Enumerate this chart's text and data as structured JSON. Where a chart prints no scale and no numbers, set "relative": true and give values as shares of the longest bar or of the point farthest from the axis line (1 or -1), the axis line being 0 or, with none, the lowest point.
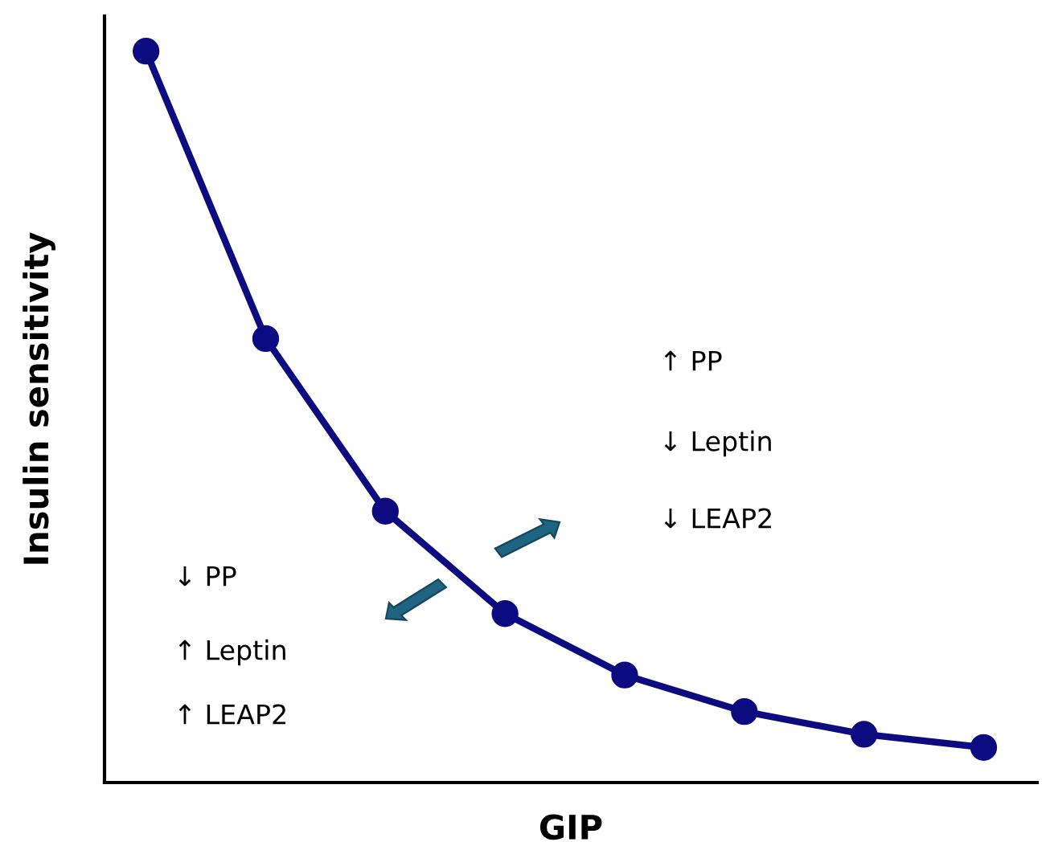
{
  "chart_data": {
    "type": "line",
    "relative": true,
    "xlabel": "GIP",
    "ylabel": "Insulin sensitivity",
    "categories": [
      null,
      null,
      null,
      null,
      null,
      null,
      null,
      null
    ],
    "series": [
      {
        "color": "#0c0c80",
        "values": [
          1,
          0.607,
          0.371,
          0.231,
          0.147,
          0.097,
          0.066,
          0.048
        ]
      }
    ],
    "marker": "circle",
    "line_style": "solid",
    "grid": false,
    "legend": false,
    "tick_labels": false,
    "annotations": [
      "↑ PP",
      "↓ Leptin",
      "↓ LEAP2",
      "↓ PP",
      "↑ Leptin",
      "↑ LEAP2"
    ]
  }
}
